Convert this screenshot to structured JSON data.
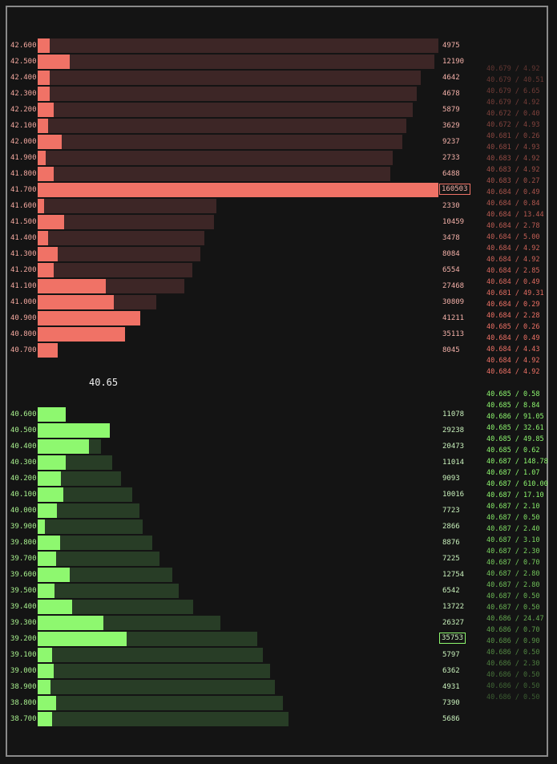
{
  "mid_price": "40.65",
  "colors": {
    "ask": "#f07266",
    "ask_bg": "#3d2626",
    "bid": "#8ef86f",
    "bid_bg": "#283d26"
  },
  "asks": [
    {
      "price": "42.600",
      "qty": "4975",
      "fill": 0.03,
      "total": 1.0
    },
    {
      "price": "42.500",
      "qty": "12190",
      "fill": 0.08,
      "total": 0.99
    },
    {
      "price": "42.400",
      "qty": "4642",
      "fill": 0.03,
      "total": 0.955
    },
    {
      "price": "42.300",
      "qty": "4678",
      "fill": 0.03,
      "total": 0.945
    },
    {
      "price": "42.200",
      "qty": "5879",
      "fill": 0.04,
      "total": 0.935
    },
    {
      "price": "42.100",
      "qty": "3629",
      "fill": 0.025,
      "total": 0.92
    },
    {
      "price": "42.000",
      "qty": "9237",
      "fill": 0.06,
      "total": 0.91
    },
    {
      "price": "41.900",
      "qty": "2733",
      "fill": 0.02,
      "total": 0.885
    },
    {
      "price": "41.800",
      "qty": "6488",
      "fill": 0.04,
      "total": 0.88
    },
    {
      "price": "41.700",
      "qty": "160503",
      "fill": 1.0,
      "total": 1.0,
      "highlight": true
    },
    {
      "price": "41.600",
      "qty": "2330",
      "fill": 0.015,
      "total": 0.445
    },
    {
      "price": "41.500",
      "qty": "10459",
      "fill": 0.065,
      "total": 0.44
    },
    {
      "price": "41.400",
      "qty": "3478",
      "fill": 0.025,
      "total": 0.415
    },
    {
      "price": "41.300",
      "qty": "8084",
      "fill": 0.05,
      "total": 0.405
    },
    {
      "price": "41.200",
      "qty": "6554",
      "fill": 0.04,
      "total": 0.385
    },
    {
      "price": "41.100",
      "qty": "27468",
      "fill": 0.17,
      "total": 0.365
    },
    {
      "price": "41.000",
      "qty": "30809",
      "fill": 0.19,
      "total": 0.295
    },
    {
      "price": "40.900",
      "qty": "41211",
      "fill": 0.255,
      "total": 0.255
    },
    {
      "price": "40.800",
      "qty": "35113",
      "fill": 0.218,
      "total": 0.218
    },
    {
      "price": "40.700",
      "qty": "8045",
      "fill": 0.05,
      "total": 0.05
    }
  ],
  "bids": [
    {
      "price": "40.600",
      "qty": "11078",
      "fill": 0.07,
      "total": 0.07
    },
    {
      "price": "40.500",
      "qty": "29238",
      "fill": 0.18,
      "total": 0.18
    },
    {
      "price": "40.400",
      "qty": "20473",
      "fill": 0.127,
      "total": 0.157
    },
    {
      "price": "40.300",
      "qty": "11014",
      "fill": 0.07,
      "total": 0.185
    },
    {
      "price": "40.200",
      "qty": "9093",
      "fill": 0.057,
      "total": 0.208
    },
    {
      "price": "40.100",
      "qty": "10016",
      "fill": 0.063,
      "total": 0.235
    },
    {
      "price": "40.000",
      "qty": "7723",
      "fill": 0.048,
      "total": 0.253
    },
    {
      "price": "39.900",
      "qty": "2866",
      "fill": 0.018,
      "total": 0.262
    },
    {
      "price": "39.800",
      "qty": "8876",
      "fill": 0.055,
      "total": 0.285
    },
    {
      "price": "39.700",
      "qty": "7225",
      "fill": 0.045,
      "total": 0.304
    },
    {
      "price": "39.600",
      "qty": "12754",
      "fill": 0.08,
      "total": 0.336
    },
    {
      "price": "39.500",
      "qty": "6542",
      "fill": 0.041,
      "total": 0.352
    },
    {
      "price": "39.400",
      "qty": "13722",
      "fill": 0.085,
      "total": 0.387
    },
    {
      "price": "39.300",
      "qty": "26327",
      "fill": 0.164,
      "total": 0.455
    },
    {
      "price": "39.200",
      "qty": "35753",
      "fill": 0.222,
      "total": 0.547,
      "highlight": true
    },
    {
      "price": "39.100",
      "qty": "5797",
      "fill": 0.036,
      "total": 0.562
    },
    {
      "price": "39.000",
      "qty": "6362",
      "fill": 0.04,
      "total": 0.579
    },
    {
      "price": "38.900",
      "qty": "4931",
      "fill": 0.031,
      "total": 0.591
    },
    {
      "price": "38.800",
      "qty": "7390",
      "fill": 0.046,
      "total": 0.611
    },
    {
      "price": "38.700",
      "qty": "5686",
      "fill": 0.035,
      "total": 0.625
    }
  ],
  "trades": [
    {
      "text": "40.679 / 4.92",
      "side": "sell",
      "opacity": 0.35
    },
    {
      "text": "40.679 / 40.51",
      "side": "sell",
      "opacity": 0.38
    },
    {
      "text": "40.679 / 6.65",
      "side": "sell",
      "opacity": 0.41
    },
    {
      "text": "40.679 / 4.92",
      "side": "sell",
      "opacity": 0.44
    },
    {
      "text": "40.672 / 0.40",
      "side": "sell",
      "opacity": 0.47
    },
    {
      "text": "40.672 / 4.93",
      "side": "sell",
      "opacity": 0.5
    },
    {
      "text": "40.681 / 0.26",
      "side": "sell",
      "opacity": 0.53
    },
    {
      "text": "40.681 / 4.93",
      "side": "sell",
      "opacity": 0.56
    },
    {
      "text": "40.683 / 4.92",
      "side": "sell",
      "opacity": 0.59
    },
    {
      "text": "40.683 / 4.92",
      "side": "sell",
      "opacity": 0.62
    },
    {
      "text": "40.683 / 0.27",
      "side": "sell",
      "opacity": 0.65
    },
    {
      "text": "40.684 / 0.49",
      "side": "sell",
      "opacity": 0.68
    },
    {
      "text": "40.684 / 0.84",
      "side": "sell",
      "opacity": 0.71
    },
    {
      "text": "40.684 / 13.44",
      "side": "sell",
      "opacity": 0.74
    },
    {
      "text": "40.684 / 2.78",
      "side": "sell",
      "opacity": 0.77
    },
    {
      "text": "40.684 / 5.00",
      "side": "sell",
      "opacity": 0.8
    },
    {
      "text": "40.684 / 4.92",
      "side": "sell",
      "opacity": 0.83
    },
    {
      "text": "40.684 / 4.92",
      "side": "sell",
      "opacity": 0.86
    },
    {
      "text": "40.684 / 2.85",
      "side": "sell",
      "opacity": 0.89
    },
    {
      "text": "40.684 / 0.49",
      "side": "sell",
      "opacity": 0.92
    },
    {
      "text": "40.681 / 49.31",
      "side": "sell",
      "opacity": 0.95
    },
    {
      "text": "40.684 / 0.29",
      "side": "sell",
      "opacity": 1
    },
    {
      "text": "40.684 / 2.28",
      "side": "sell",
      "opacity": 1
    },
    {
      "text": "40.685 / 0.26",
      "side": "sell",
      "opacity": 1
    },
    {
      "text": "40.684 / 0.49",
      "side": "sell",
      "opacity": 1
    },
    {
      "text": "40.684 / 4.43",
      "side": "sell",
      "opacity": 1
    },
    {
      "text": "40.684 / 4.92",
      "side": "sell",
      "opacity": 1
    },
    {
      "text": "40.684 / 4.92",
      "side": "sell",
      "opacity": 1
    },
    {
      "text": "40.685 / 0.58",
      "side": "buy",
      "opacity": 1
    },
    {
      "text": "40.685 / 8.84",
      "side": "buy",
      "opacity": 1
    },
    {
      "text": "40.686 / 91.05",
      "side": "buy",
      "opacity": 1
    },
    {
      "text": "40.685 / 32.61",
      "side": "buy",
      "opacity": 1
    },
    {
      "text": "40.685 / 49.85",
      "side": "buy",
      "opacity": 1
    },
    {
      "text": "40.685 / 0.62",
      "side": "buy",
      "opacity": 1
    },
    {
      "text": "40.687 / 148.78",
      "side": "buy",
      "opacity": 1
    },
    {
      "text": "40.687 / 1.07",
      "side": "buy",
      "opacity": 1
    },
    {
      "text": "40.687 / 610.00",
      "side": "buy",
      "opacity": 1
    },
    {
      "text": "40.687 / 17.10",
      "side": "buy",
      "opacity": 1
    },
    {
      "text": "40.687 / 2.10",
      "side": "buy",
      "opacity": 0.95
    },
    {
      "text": "40.687 / 0.50",
      "side": "buy",
      "opacity": 0.92
    },
    {
      "text": "40.687 / 2.40",
      "side": "buy",
      "opacity": 0.89
    },
    {
      "text": "40.687 / 3.10",
      "side": "buy",
      "opacity": 0.86
    },
    {
      "text": "40.687 / 2.30",
      "side": "buy",
      "opacity": 0.83
    },
    {
      "text": "40.687 / 0.70",
      "side": "buy",
      "opacity": 0.8
    },
    {
      "text": "40.687 / 2.80",
      "side": "buy",
      "opacity": 0.77
    },
    {
      "text": "40.687 / 2.80",
      "side": "buy",
      "opacity": 0.74
    },
    {
      "text": "40.687 / 0.50",
      "side": "buy",
      "opacity": 0.71
    },
    {
      "text": "40.687 / 0.50",
      "side": "buy",
      "opacity": 0.68
    },
    {
      "text": "40.686 / 24.47",
      "side": "buy",
      "opacity": 0.65
    },
    {
      "text": "40.686 / 0.70",
      "side": "buy",
      "opacity": 0.6
    },
    {
      "text": "40.686 / 0.90",
      "side": "buy",
      "opacity": 0.55
    },
    {
      "text": "40.686 / 0.50",
      "side": "buy",
      "opacity": 0.5
    },
    {
      "text": "40.686 / 2.30",
      "side": "buy",
      "opacity": 0.45
    },
    {
      "text": "40.686 / 0.50",
      "side": "buy",
      "opacity": 0.4
    },
    {
      "text": "40.686 / 0.50",
      "side": "buy",
      "opacity": 0.35
    },
    {
      "text": "40.686 / 0.50",
      "side": "buy",
      "opacity": 0.3
    }
  ]
}
